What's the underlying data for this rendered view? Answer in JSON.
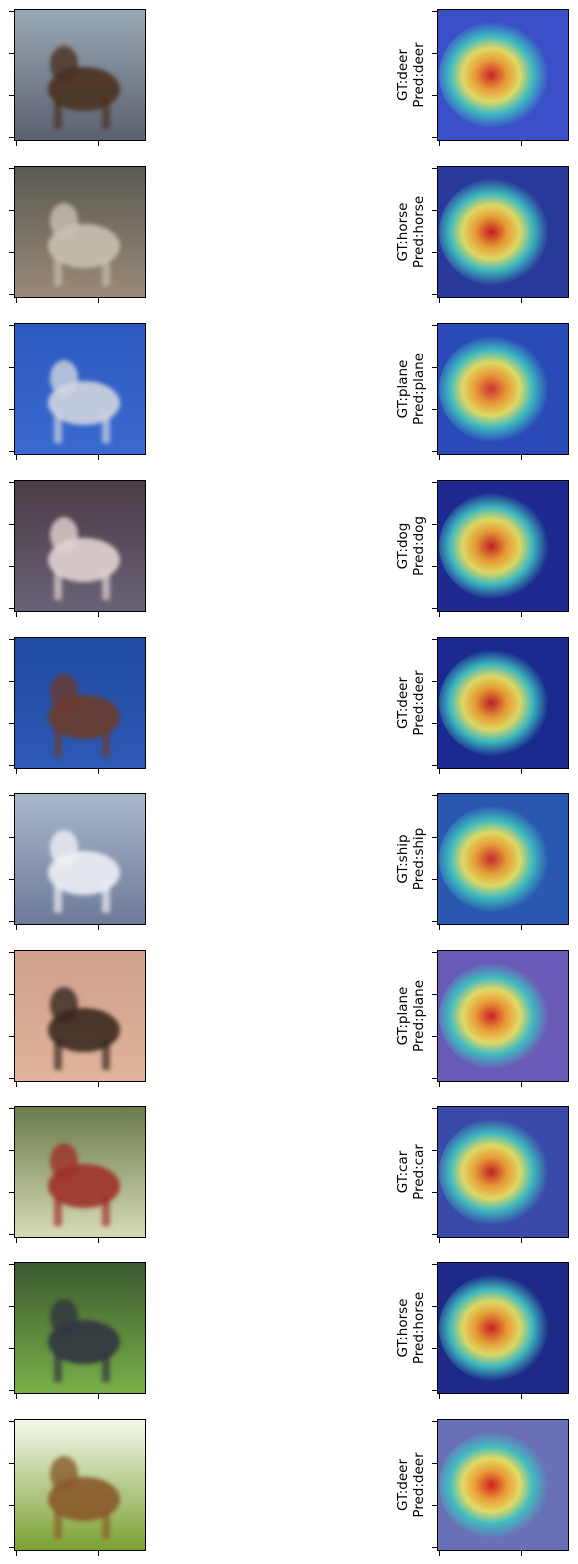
{
  "figure": {
    "rows": [
      {
        "label_gt": "GT:deer",
        "label_pred": "Pred:deer",
        "image_icon": "deer-photo-icon",
        "heatmap_icon": "deer-heatmap-icon",
        "bg": "#9aa8b6",
        "bg2": "#5a6070",
        "subject": "#4a3020",
        "hm_bg": "#3b4fc8",
        "hot": "#d22020"
      },
      {
        "label_gt": "GT:horse",
        "label_pred": "Pred:horse",
        "image_icon": "horse-photo-icon",
        "heatmap_icon": "horse-heatmap-icon",
        "bg": "#5a5a52",
        "bg2": "#9a8a78",
        "subject": "#c8c0b4",
        "hm_bg": "#2a3a9a",
        "hot": "#c81818"
      },
      {
        "label_gt": "GT:plane",
        "label_pred": "Pred:plane",
        "image_icon": "plane-photo-icon",
        "heatmap_icon": "plane-heatmap-icon",
        "bg": "#2a5ac0",
        "bg2": "#3a6ad0",
        "subject": "#d0d4e0",
        "hm_bg": "#2a4ab8",
        "hot": "#d83030"
      },
      {
        "label_gt": "GT:dog",
        "label_pred": "Pred:dog",
        "image_icon": "dog-photo-icon",
        "heatmap_icon": "dog-heatmap-icon",
        "bg": "#4a3a44",
        "bg2": "#6a6278",
        "subject": "#e0d4d0",
        "hm_bg": "#1e2a90",
        "hot": "#c82020"
      },
      {
        "label_gt": "GT:deer",
        "label_pred": "Pred:deer",
        "image_icon": "deer-photo-icon",
        "heatmap_icon": "deer-heatmap-icon",
        "bg": "#1e4aa0",
        "bg2": "#2e5ab8",
        "subject": "#6a3a2a",
        "hm_bg": "#1a2a90",
        "hot": "#c02020"
      },
      {
        "label_gt": "GT:ship",
        "label_pred": "Pred:ship",
        "image_icon": "ship-photo-icon",
        "heatmap_icon": "ship-heatmap-icon",
        "bg": "#aab8cc",
        "bg2": "#6a7a98",
        "subject": "#f0f0f4",
        "hm_bg": "#2a58b0",
        "hot": "#c82828"
      },
      {
        "label_gt": "GT:plane",
        "label_pred": "Pred:plane",
        "image_icon": "plane-photo-icon",
        "heatmap_icon": "plane-heatmap-icon",
        "bg": "#d0a08a",
        "bg2": "#e0b49c",
        "subject": "#3a2820",
        "hm_bg": "#6a5ab8",
        "hot": "#d02020"
      },
      {
        "label_gt": "GT:car",
        "label_pred": "Pred:car",
        "image_icon": "car-photo-icon",
        "heatmap_icon": "car-heatmap-icon",
        "bg": "#6a7a4a",
        "bg2": "#d8dcb8",
        "subject": "#a03028",
        "hm_bg": "#3a4aa8",
        "hot": "#c82020"
      },
      {
        "label_gt": "GT:horse",
        "label_pred": "Pred:horse",
        "image_icon": "horse-photo-icon",
        "heatmap_icon": "horse-heatmap-icon",
        "bg": "#3a5a30",
        "bg2": "#7ab048",
        "subject": "#303440",
        "hm_bg": "#1e2a88",
        "hot": "#d02020"
      },
      {
        "label_gt": "GT:deer",
        "label_pred": "Pred:deer",
        "image_icon": "deer-photo-icon",
        "heatmap_icon": "deer-heatmap-icon",
        "bg": "#f4f8ec",
        "bg2": "#7aa030",
        "subject": "#8a5a2a",
        "hm_bg": "#6a70b8",
        "hot": "#d81a1a"
      }
    ]
  }
}
